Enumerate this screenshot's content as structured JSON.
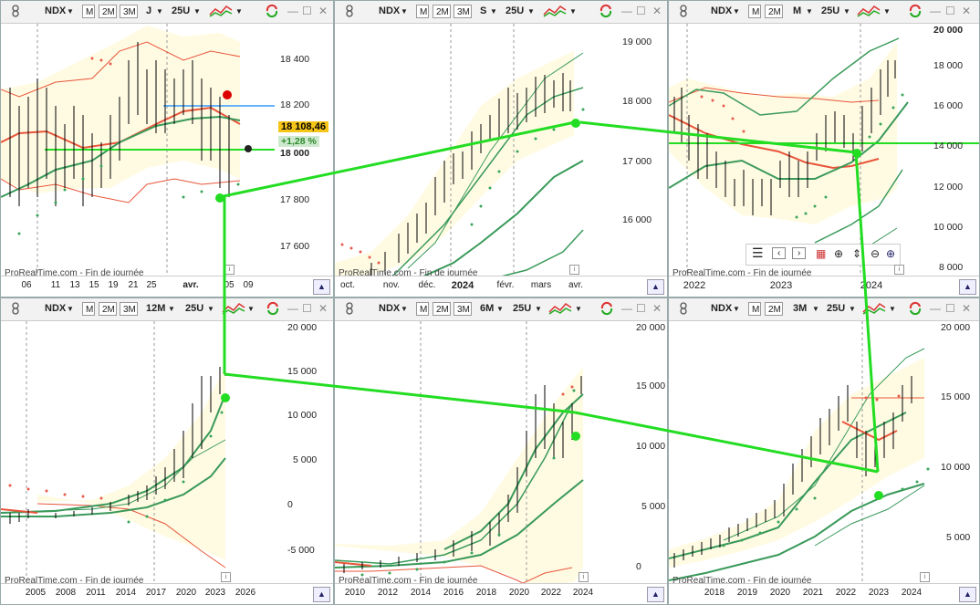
{
  "panels": [
    {
      "id": "p1",
      "symbol": "NDX",
      "period": "J",
      "units": "25U",
      "btns": [
        "M",
        "2M",
        "3M"
      ],
      "y_labels": [
        "18 400",
        "18 200",
        "18 000",
        "17 800",
        "17 600"
      ],
      "x_labels": [
        "06",
        "11",
        "13",
        "15",
        "19",
        "21",
        "25",
        "avr.",
        "05",
        "09"
      ],
      "price": "18 108,46",
      "pct": "+1,28 %",
      "footer": "ProRealTime.com - Fin de journée"
    },
    {
      "id": "p2",
      "symbol": "NDX",
      "period": "S",
      "units": "25U",
      "btns": [
        "M",
        "2M",
        "3M"
      ],
      "y_labels": [
        "19 000",
        "18 000",
        "17 000",
        "16 000"
      ],
      "x_labels": [
        "oct.",
        "nov.",
        "déc.",
        "2024",
        "févr.",
        "mars",
        "avr."
      ],
      "footer": "ProRealTime.com - Fin de journée"
    },
    {
      "id": "p3",
      "symbol": "NDX",
      "period": "M",
      "units": "25U",
      "btns": [
        "M",
        "2M"
      ],
      "y_labels": [
        "20 000",
        "18 000",
        "16 000",
        "14 000",
        "12 000",
        "10 000",
        "8 000"
      ],
      "x_labels": [
        "2022",
        "2023",
        "2024"
      ],
      "footer": "ProRealTime.com - Fin de journée",
      "nav_icons": [
        "menu-icon",
        "prev-icon",
        "next-icon",
        "chart-icon",
        "zoom-fit-icon",
        "zoom-range-icon",
        "zoom-out-icon",
        "zoom-in-icon"
      ]
    },
    {
      "id": "p4",
      "symbol": "NDX",
      "period": "12M",
      "units": "25U",
      "btns": [
        "M",
        "2M",
        "3M"
      ],
      "y_labels": [
        "20 000",
        "15 000",
        "10 000",
        "5 000",
        "0",
        "-5 000"
      ],
      "x_labels": [
        "2005",
        "2008",
        "2011",
        "2014",
        "2017",
        "2020",
        "2023",
        "2026"
      ],
      "footer": "ProRealTime.com - Fin de journée"
    },
    {
      "id": "p5",
      "symbol": "NDX",
      "period": "6M",
      "units": "25U",
      "btns": [
        "M",
        "2M",
        "3M"
      ],
      "y_labels": [
        "20 000",
        "15 000",
        "10 000",
        "5 000",
        "0"
      ],
      "x_labels": [
        "2010",
        "2012",
        "2014",
        "2016",
        "2018",
        "2020",
        "2022",
        "2024"
      ],
      "footer": "ProRealTime.com - Fin de journée"
    },
    {
      "id": "p6",
      "symbol": "NDX",
      "period": "3M",
      "units": "25U",
      "btns": [
        "M",
        "2M"
      ],
      "y_labels": [
        "20 000",
        "15 000",
        "10 000",
        "5 000"
      ],
      "x_labels": [
        "2018",
        "2019",
        "2020",
        "2021",
        "2022",
        "2023",
        "2024"
      ],
      "footer": "ProRealTime.com - Fin de journée"
    }
  ],
  "colors": {
    "accent_green": "#22dd22",
    "red_band": "#e8553a",
    "green_band": "#3a9a5a",
    "fill": "#fffbe3",
    "sar": "#3aa55a",
    "sar_red": "#e85a4a",
    "hline_blue": "#3399ff"
  }
}
